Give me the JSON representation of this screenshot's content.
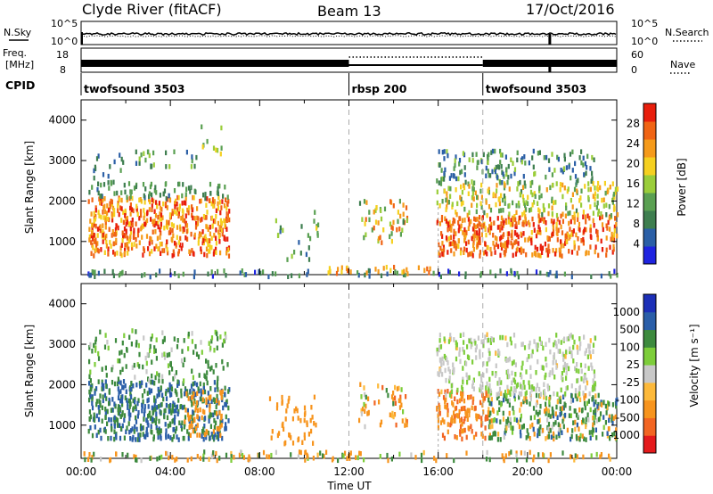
{
  "header": {
    "station": "Clyde River (fitACF)",
    "beam": "Beam 13",
    "date": "17/Oct/2016"
  },
  "strip_sky": {
    "left_label": "N.Sky",
    "left_ticks": [
      "10^5",
      "10^0"
    ],
    "right_ticks": [
      "10^5",
      "10^0"
    ],
    "right_label": "N.Search"
  },
  "strip_freq": {
    "left_label_1": "Freq.",
    "left_label_2": "[MHz]",
    "left_ticks": [
      "18",
      "8"
    ],
    "right_ticks": [
      "60",
      "0"
    ],
    "right_label": "Nave"
  },
  "cpid": {
    "label": "CPID",
    "segments": [
      {
        "start_hour": 0,
        "name": "twofsound 3503"
      },
      {
        "start_hour": 12,
        "name": "rbsp 200"
      },
      {
        "start_hour": 18,
        "name": "twofsound 3503"
      }
    ]
  },
  "xaxis": {
    "label": "Time UT",
    "ticks": [
      "00:00",
      "04:00",
      "08:00",
      "12:00",
      "16:00",
      "20:00",
      "00:00"
    ]
  },
  "colors": {
    "power": [
      "#1f24e0",
      "#2b5fa6",
      "#3e7e4f",
      "#5aa052",
      "#9acd3a",
      "#f5d020",
      "#f59a1a",
      "#f06414",
      "#e81e0c"
    ],
    "velocity": [
      "#e41a1c",
      "#f26522",
      "#f7941d",
      "#fdb93a",
      "#c8c8c8",
      "#7dcd3a",
      "#3d8a3e",
      "#2a5ea8",
      "#1c2fb7"
    ]
  },
  "chart_data": [
    {
      "type": "heatmap",
      "title": "",
      "xlabel": "Time UT",
      "ylabel": "Slant Range [km]",
      "xlim_hours": [
        0,
        24
      ],
      "ylim": [
        180,
        4500
      ],
      "yticks": [
        "1000",
        "2000",
        "3000",
        "4000"
      ],
      "colorbar": {
        "label": "Power [dB]",
        "ticks": [
          "4",
          "8",
          "12",
          "16",
          "20",
          "24",
          "28"
        ],
        "range": [
          0,
          32
        ]
      },
      "scatter_regions": [
        {
          "t": [
            0.3,
            6.6
          ],
          "r": [
            700,
            2150
          ],
          "v": [
            18,
            32
          ],
          "d": 0.9
        },
        {
          "t": [
            0.3,
            6.6
          ],
          "r": [
            2100,
            2500
          ],
          "v": [
            6,
            14
          ],
          "d": 0.45
        },
        {
          "t": [
            0.5,
            2.0
          ],
          "r": [
            2500,
            3200
          ],
          "v": [
            5,
            12
          ],
          "d": 0.25
        },
        {
          "t": [
            2.4,
            5.2
          ],
          "r": [
            2900,
            3300
          ],
          "v": [
            6,
            16
          ],
          "d": 0.35
        },
        {
          "t": [
            5.2,
            6.3
          ],
          "r": [
            3200,
            3900
          ],
          "v": [
            8,
            20
          ],
          "d": 0.2
        },
        {
          "t": [
            8.4,
            10.3
          ],
          "r": [
            600,
            1800
          ],
          "v": [
            6,
            18
          ],
          "d": 0.12
        },
        {
          "t": [
            10.3,
            10.6
          ],
          "r": [
            1200,
            1800
          ],
          "v": [
            10,
            20
          ],
          "d": 0.6
        },
        {
          "t": [
            12.4,
            14.6
          ],
          "r": [
            1000,
            2100
          ],
          "v": [
            10,
            28
          ],
          "d": 0.35
        },
        {
          "t": [
            15.9,
            24.0
          ],
          "r": [
            700,
            1700
          ],
          "v": [
            20,
            32
          ],
          "d": 0.85
        },
        {
          "t": [
            15.9,
            24.0
          ],
          "r": [
            1700,
            2500
          ],
          "v": [
            10,
            24
          ],
          "d": 0.55
        },
        {
          "t": [
            15.9,
            23.0
          ],
          "r": [
            2500,
            3300
          ],
          "v": [
            4,
            16
          ],
          "d": 0.45
        },
        {
          "t": [
            0.0,
            24.0
          ],
          "r": [
            180,
            340
          ],
          "v": [
            2,
            14
          ],
          "d": 0.4
        },
        {
          "t": [
            11.0,
            15.7
          ],
          "r": [
            250,
            450
          ],
          "v": [
            18,
            26
          ],
          "d": 0.45
        }
      ]
    },
    {
      "type": "heatmap",
      "title": "",
      "xlabel": "Time UT",
      "ylabel": "Slant Range [km]",
      "xlim_hours": [
        0,
        24
      ],
      "ylim": [
        180,
        4500
      ],
      "yticks": [
        "1000",
        "2000",
        "3000",
        "4000"
      ],
      "colorbar": {
        "label": "Velocity [m s⁻¹]",
        "ticks": [
          "1000",
          "500",
          "100",
          "25",
          "-25",
          "-100",
          "-500",
          "-1000"
        ],
        "range": [
          -1200,
          1200
        ]
      },
      "scatter_regions": [
        {
          "t": [
            0.3,
            6.6
          ],
          "r": [
            700,
            2150
          ],
          "v": [
            100,
            900
          ],
          "d": 0.9
        },
        {
          "t": [
            4.6,
            6.3
          ],
          "r": [
            800,
            1900
          ],
          "v": [
            -400,
            -120
          ],
          "d": 0.55
        },
        {
          "t": [
            0.3,
            6.6
          ],
          "r": [
            2100,
            3400
          ],
          "v": [
            -20,
            400
          ],
          "d": 0.3
        },
        {
          "t": [
            8.4,
            10.6
          ],
          "r": [
            600,
            1800
          ],
          "v": [
            -500,
            -150
          ],
          "d": 0.3
        },
        {
          "t": [
            12.4,
            14.6
          ],
          "r": [
            1000,
            2100
          ],
          "v": [
            -600,
            200
          ],
          "d": 0.35
        },
        {
          "t": [
            15.9,
            18.2
          ],
          "r": [
            700,
            1900
          ],
          "v": [
            -700,
            -100
          ],
          "d": 0.75
        },
        {
          "t": [
            18.2,
            24.0
          ],
          "r": [
            700,
            1800
          ],
          "v": [
            -200,
            600
          ],
          "d": 0.8
        },
        {
          "t": [
            15.9,
            23.0
          ],
          "r": [
            1800,
            3300
          ],
          "v": [
            -30,
            60
          ],
          "d": 0.55
        },
        {
          "t": [
            0.0,
            24.0
          ],
          "r": [
            180,
            400
          ],
          "v": [
            -500,
            300
          ],
          "d": 0.45
        }
      ]
    }
  ]
}
